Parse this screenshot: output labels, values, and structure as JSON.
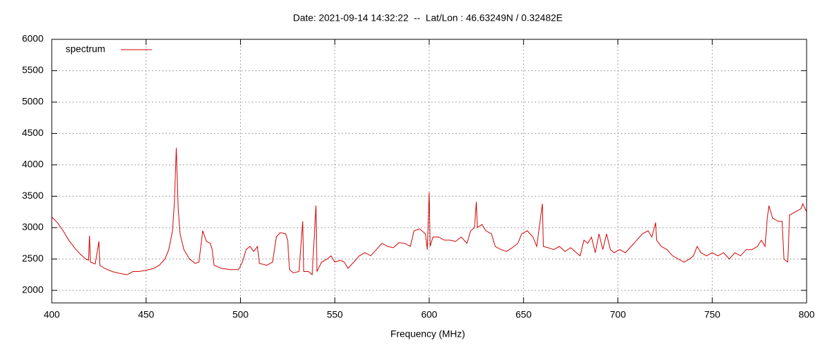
{
  "chart_data": {
    "type": "line",
    "title": "Date: 2021-09-14 14:32:22  --  Lat/Lon : 46.63249N / 0.32482E",
    "xlabel": "Frequency (MHz)",
    "xlim": [
      400,
      800
    ],
    "xticks": [
      400,
      450,
      500,
      550,
      600,
      650,
      700,
      750,
      800
    ],
    "ylim": [
      1800,
      6000
    ],
    "yticks": [
      2000,
      2500,
      3000,
      3500,
      4000,
      4500,
      5000,
      5500,
      6000
    ],
    "grid": true,
    "legend": "top-left",
    "x": [
      400,
      403,
      406,
      409,
      412,
      415,
      418,
      419.5,
      420,
      420.5,
      423,
      425,
      425.5,
      428,
      432,
      436,
      440,
      443,
      446,
      450,
      454,
      457,
      460,
      462,
      464,
      465,
      466,
      467,
      468,
      470,
      473,
      476,
      478,
      479,
      480,
      482,
      484,
      485,
      486,
      490,
      495,
      499,
      501,
      503,
      505,
      507,
      509,
      510,
      514,
      517,
      519,
      521,
      524,
      525,
      526,
      528,
      531,
      533,
      533.5,
      536,
      538,
      540,
      540.5,
      543,
      546,
      548,
      550,
      553,
      555,
      557,
      560,
      563,
      566,
      569,
      572,
      575,
      578,
      581,
      584,
      587,
      590,
      592,
      595,
      598,
      599,
      600,
      600.5,
      602,
      605,
      608,
      611,
      614,
      617,
      620,
      622,
      624,
      625,
      625.5,
      628,
      630,
      633,
      635,
      638,
      641,
      644,
      647,
      649,
      652,
      655,
      657,
      660,
      660.5,
      663,
      666,
      669,
      672,
      675,
      678,
      680,
      682,
      684,
      686,
      688,
      690,
      692,
      694,
      696,
      698,
      701,
      704,
      707,
      710,
      713,
      716,
      718,
      720,
      720.5,
      723,
      726,
      729,
      732,
      735,
      738,
      740,
      742,
      744,
      747,
      750,
      753,
      756,
      759,
      762,
      765,
      768,
      771,
      774,
      776,
      778,
      779,
      780,
      782,
      785,
      787,
      788,
      790,
      791,
      794,
      797,
      798,
      800
    ],
    "series": [
      {
        "name": "spectrum",
        "color": "#d00000",
        "values": [
          3170,
          3080,
          2950,
          2800,
          2680,
          2580,
          2500,
          2480,
          2870,
          2450,
          2420,
          2780,
          2400,
          2350,
          2300,
          2270,
          2250,
          2300,
          2300,
          2320,
          2350,
          2400,
          2500,
          2650,
          2950,
          3400,
          4270,
          3300,
          2900,
          2650,
          2500,
          2430,
          2450,
          2700,
          2950,
          2780,
          2750,
          2650,
          2400,
          2350,
          2330,
          2330,
          2450,
          2650,
          2700,
          2620,
          2700,
          2430,
          2400,
          2450,
          2850,
          2920,
          2900,
          2800,
          2330,
          2280,
          2300,
          3100,
          2300,
          2300,
          2250,
          3350,
          2300,
          2450,
          2500,
          2550,
          2450,
          2480,
          2450,
          2350,
          2450,
          2550,
          2600,
          2550,
          2650,
          2750,
          2700,
          2680,
          2760,
          2750,
          2700,
          2950,
          2980,
          2900,
          2650,
          3560,
          2700,
          2850,
          2850,
          2800,
          2800,
          2780,
          2850,
          2750,
          2950,
          3000,
          3410,
          3000,
          3050,
          2950,
          2900,
          2700,
          2650,
          2620,
          2680,
          2750,
          2900,
          2950,
          2850,
          2700,
          3380,
          2700,
          2680,
          2650,
          2700,
          2620,
          2680,
          2600,
          2550,
          2800,
          2750,
          2850,
          2600,
          2900,
          2650,
          2900,
          2650,
          2600,
          2650,
          2600,
          2700,
          2800,
          2900,
          2950,
          2850,
          3080,
          2800,
          2700,
          2650,
          2550,
          2500,
          2450,
          2500,
          2550,
          2700,
          2600,
          2550,
          2600,
          2550,
          2600,
          2500,
          2600,
          2550,
          2650,
          2650,
          2700,
          2800,
          2700,
          3100,
          3350,
          3150,
          3100,
          3100,
          2500,
          2450,
          3200,
          3250,
          3300,
          3380,
          3250
        ]
      }
    ]
  }
}
